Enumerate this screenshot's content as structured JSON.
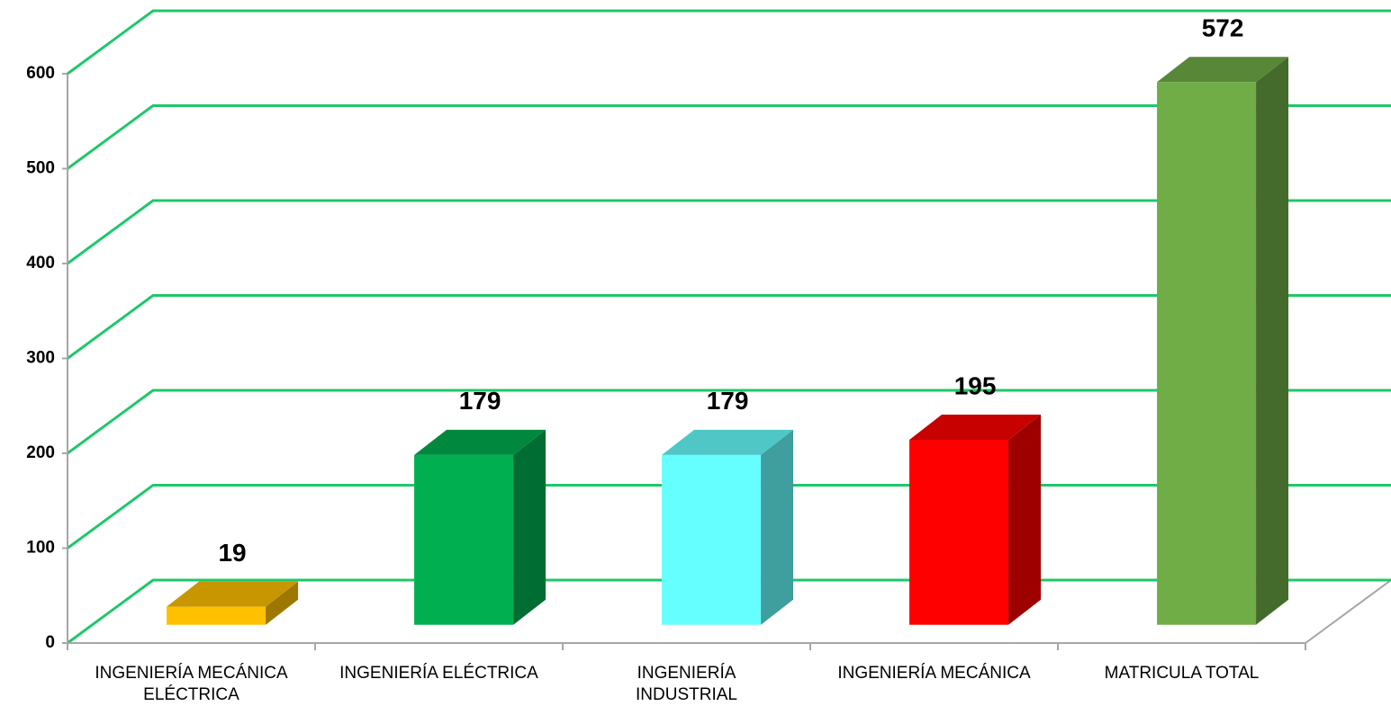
{
  "chart_data": {
    "type": "bar3d",
    "categories": [
      "INGENIERÍA MECÁNICA ELÉCTRICA",
      "INGENIERÍA ELÉCTRICA",
      "INGENIERÍA INDUSTRIAL",
      "INGENIERÍA MECÁNICA",
      "MATRICULA TOTAL"
    ],
    "values": [
      19,
      179,
      179,
      195,
      572
    ],
    "colors": [
      "#ffc000",
      "#00b050",
      "#66ffff",
      "#ff0000",
      "#70ad47"
    ],
    "ylim": [
      0,
      600
    ],
    "yticks": [
      0,
      100,
      200,
      300,
      400,
      500,
      600
    ],
    "grid": true,
    "grid_color": "#1ec86a"
  }
}
